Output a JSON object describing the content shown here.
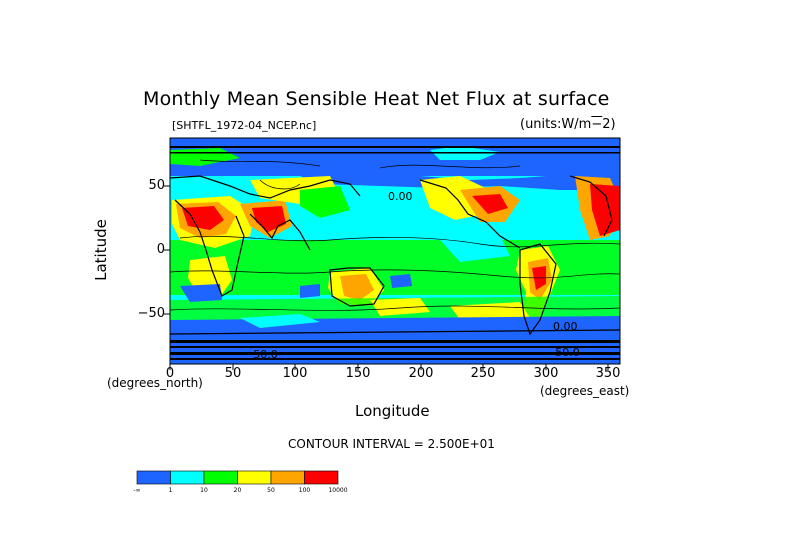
{
  "title": "Monthly Mean Sensible Heat Net Flux at surface",
  "subtitle": "[SHTFL_1972-04_NCEP.nc]",
  "units": "(units:W/m^2)",
  "y_axis": {
    "label": "Latitude",
    "ticks": [
      "50",
      "0",
      "−50"
    ]
  },
  "x_axis": {
    "label": "Longitude",
    "ticks": [
      "0",
      "50",
      "100",
      "150",
      "200",
      "250",
      "300",
      "350"
    ]
  },
  "x_units_left": "(degrees_north)",
  "x_units_right": "(degrees_east)",
  "contour_interval": "CONTOUR INTERVAL = 2.500E+01",
  "contour_labels": [
    "0.00",
    "0.00",
    "−50.0",
    "−50.0"
  ],
  "legend": {
    "colors": [
      "#1e64ff",
      "#00ffff",
      "#00ff00",
      "#ffff00",
      "#ffa500",
      "#ff0000"
    ],
    "labels": [
      "-∞",
      "1",
      "10",
      "20",
      "50",
      "100",
      "10000"
    ]
  }
}
